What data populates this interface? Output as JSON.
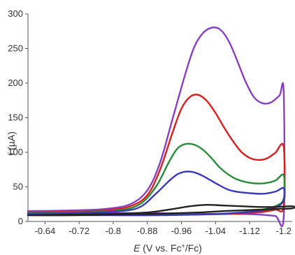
{
  "chart_data": {
    "type": "line",
    "title": "",
    "xlabel": "E (V vs. Fc+/Fc)",
    "xlabel_parts": {
      "var": "E",
      "text1": " (V vs. Fc",
      "sup": "+",
      "text2": "/Fc)"
    },
    "ylabel": "i (µA)",
    "ylabel_parts": {
      "var": "i",
      "text1": " (",
      "mu": "µ",
      "text2": "A)"
    },
    "xlim": [
      -0.6,
      -1.22
    ],
    "ylim": [
      0,
      300
    ],
    "x_ticks": [
      -0.64,
      -0.72,
      -0.8,
      -0.88,
      -0.96,
      -1.04,
      -1.12,
      -1.2
    ],
    "x_tick_labels": [
      "-0.64",
      "-0.72",
      "-0.8",
      "-0.88",
      "-0.96",
      "-1.04",
      "-1.12",
      "-1.2"
    ],
    "y_ticks": [
      0,
      50,
      100,
      150,
      200,
      250,
      300
    ],
    "y_tick_labels": [
      "0",
      "50",
      "100",
      "150",
      "200",
      "250",
      "300"
    ],
    "grid": false,
    "legend": "none",
    "series": [
      {
        "color": "#8a3fc0",
        "x": [
          -0.6,
          -0.7,
          -0.78,
          -0.84,
          -0.88,
          -0.91,
          -0.94,
          -0.97,
          -0.99,
          -1.01,
          -1.03,
          -1.05,
          -1.07,
          -1.09,
          -1.11,
          -1.13,
          -1.15,
          -1.17,
          -1.19,
          -1.2,
          -1.2,
          -1.18,
          -1.14,
          -1.08,
          -1.0,
          -0.9,
          -0.8,
          -0.7,
          -0.6
        ],
        "y": [
          15,
          16,
          18,
          25,
          45,
          85,
          150,
          215,
          252,
          272,
          280,
          278,
          262,
          234,
          203,
          180,
          171,
          172,
          182,
          188,
          6,
          8,
          10,
          11,
          11,
          12,
          12,
          12,
          13
        ]
      },
      {
        "color": "#d62020",
        "x": [
          -0.6,
          -0.7,
          -0.78,
          -0.84,
          -0.88,
          -0.91,
          -0.94,
          -0.96,
          -0.98,
          -1.0,
          -1.02,
          -1.04,
          -1.06,
          -1.08,
          -1.1,
          -1.12,
          -1.14,
          -1.16,
          -1.18,
          -1.2,
          -1.2,
          -1.18,
          -1.14,
          -1.08,
          -1.0,
          -0.9,
          -0.8,
          -0.7,
          -0.6
        ],
        "y": [
          13,
          14,
          16,
          22,
          38,
          75,
          130,
          163,
          180,
          183,
          174,
          157,
          136,
          117,
          101,
          92,
          89,
          91,
          99,
          108,
          22,
          17,
          13,
          11,
          10,
          10,
          10,
          10,
          10
        ]
      },
      {
        "color": "#2a8a3a",
        "x": [
          -0.6,
          -0.7,
          -0.8,
          -0.86,
          -0.9,
          -0.93,
          -0.95,
          -0.97,
          -0.99,
          -1.01,
          -1.03,
          -1.05,
          -1.07,
          -1.09,
          -1.12,
          -1.15,
          -1.18,
          -1.2,
          -1.2,
          -1.18,
          -1.14,
          -1.08,
          -1.0,
          -0.9,
          -0.8,
          -0.7,
          -0.6
        ],
        "y": [
          12,
          13,
          15,
          24,
          50,
          85,
          105,
          112,
          111,
          104,
          92,
          78,
          68,
          61,
          56,
          55,
          59,
          67,
          33,
          22,
          16,
          12,
          10,
          10,
          10,
          10,
          10
        ]
      },
      {
        "color": "#3a3ab8",
        "x": [
          -0.6,
          -0.7,
          -0.8,
          -0.86,
          -0.9,
          -0.93,
          -0.95,
          -0.97,
          -0.99,
          -1.01,
          -1.03,
          -1.05,
          -1.07,
          -1.09,
          -1.12,
          -1.15,
          -1.18,
          -1.2,
          -1.2,
          -1.18,
          -1.14,
          -1.08,
          -1.0,
          -0.9,
          -0.8,
          -0.7,
          -0.6
        ],
        "y": [
          11,
          12,
          14,
          20,
          40,
          58,
          68,
          72,
          71,
          66,
          59,
          52,
          46,
          43,
          41,
          40,
          43,
          48,
          30,
          20,
          15,
          12,
          10,
          9,
          9,
          9,
          9
        ]
      },
      {
        "color": "#222222",
        "x": [
          -0.6,
          -0.7,
          -0.8,
          -0.88,
          -0.94,
          -0.98,
          -1.02,
          -1.06,
          -1.1,
          -1.14,
          -1.18,
          -1.22,
          -1.22,
          -1.18,
          -1.14,
          -1.1,
          -1.06,
          -1.0,
          -0.9,
          -0.8,
          -0.7,
          -0.6
        ],
        "y": [
          9,
          10,
          11,
          13,
          18,
          22,
          24,
          23,
          22,
          21,
          21,
          22,
          19,
          18,
          17,
          16,
          15,
          13,
          11,
          10,
          9,
          9
        ]
      }
    ]
  }
}
